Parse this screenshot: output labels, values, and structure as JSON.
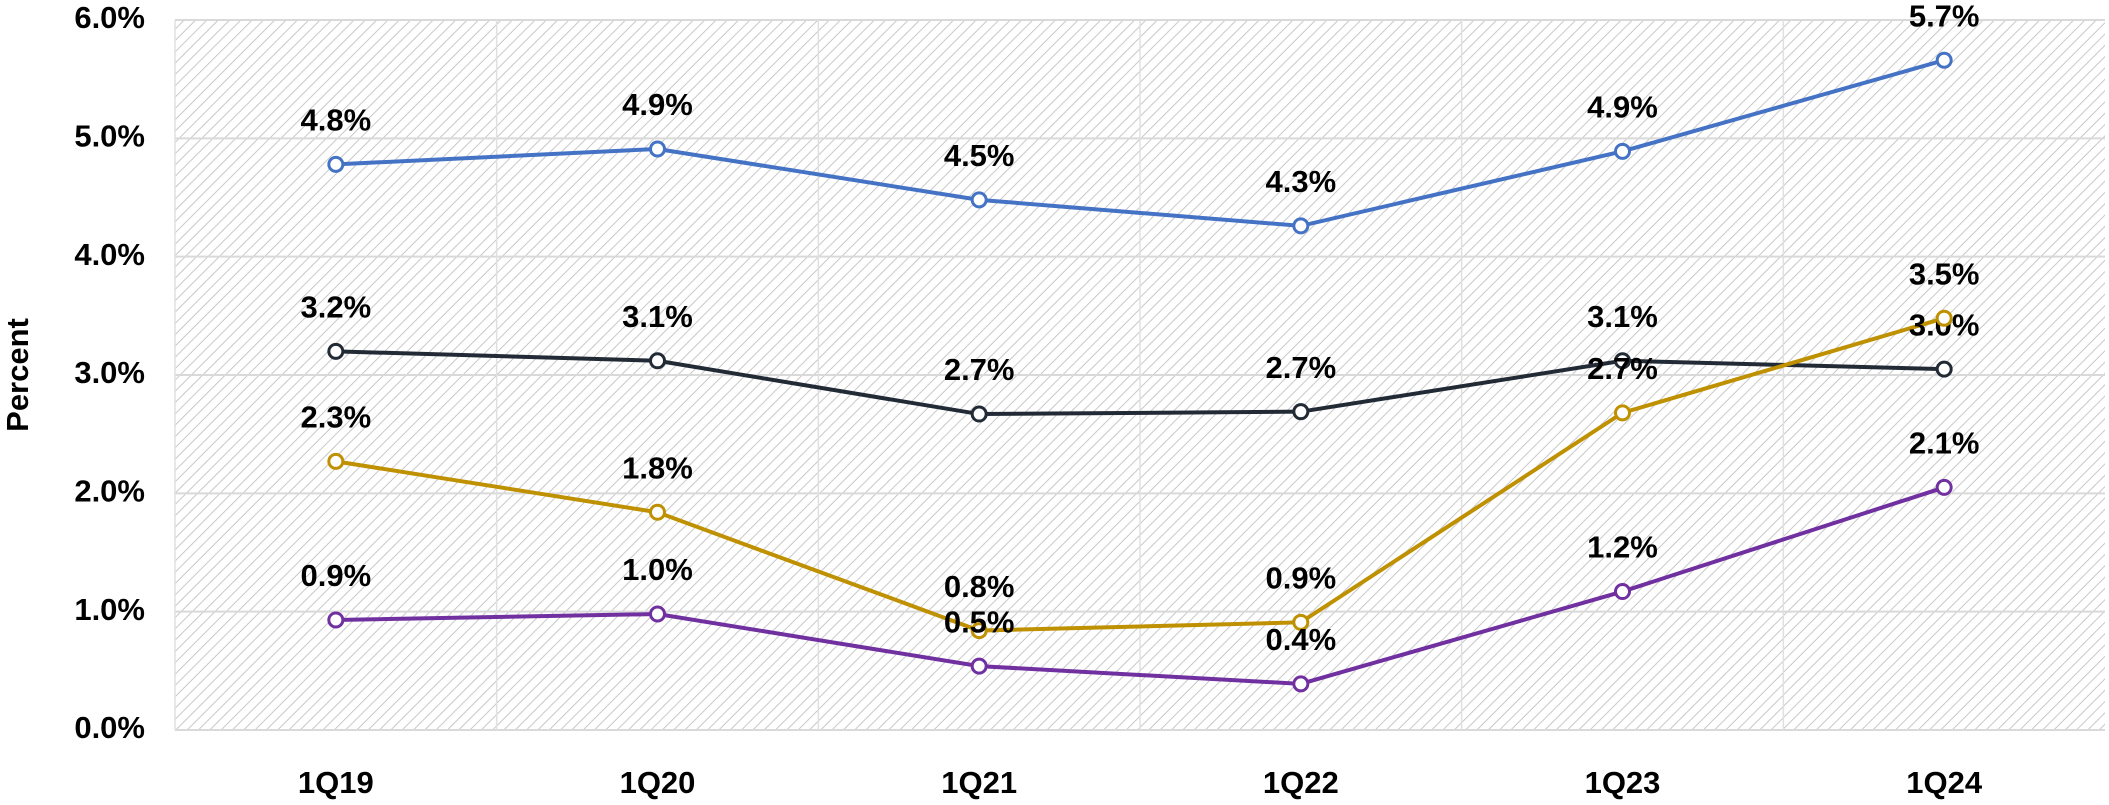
{
  "chart_data": {
    "type": "line",
    "ylabel": "Percent",
    "categories": [
      "1Q19",
      "1Q20",
      "1Q21",
      "1Q22",
      "1Q23",
      "1Q24"
    ],
    "series": [
      {
        "color": "#4472c4",
        "values": [
          4.78,
          4.91,
          4.48,
          4.26,
          4.89,
          5.66
        ],
        "value_labels": [
          "4.8%",
          "4.9%",
          "4.5%",
          "4.3%",
          "4.9%",
          "5.7%"
        ]
      },
      {
        "color": "#222a35",
        "values": [
          3.2,
          3.12,
          2.67,
          2.69,
          3.12,
          3.05
        ],
        "value_labels": [
          "3.2%",
          "3.1%",
          "2.7%",
          "2.7%",
          "3.1%",
          "3.0%"
        ]
      },
      {
        "color": "#bf9000",
        "values": [
          2.27,
          1.84,
          0.84,
          0.91,
          2.68,
          3.48
        ],
        "value_labels": [
          "2.3%",
          "1.8%",
          "0.8%",
          "0.9%",
          "2.7%",
          "3.5%"
        ]
      },
      {
        "color": "#7030a0",
        "values": [
          0.93,
          0.98,
          0.54,
          0.39,
          1.17,
          2.05
        ],
        "value_labels": [
          "0.9%",
          "1.0%",
          "0.5%",
          "0.4%",
          "1.2%",
          "2.1%"
        ]
      }
    ],
    "ylim": [
      0,
      6
    ],
    "yticks": [
      {
        "value": 0,
        "label": "0.0%"
      },
      {
        "value": 1,
        "label": "1.0%"
      },
      {
        "value": 2,
        "label": "2.0%"
      },
      {
        "value": 3,
        "label": "3.0%"
      },
      {
        "value": 4,
        "label": "4.0%"
      },
      {
        "value": 5,
        "label": "5.0%"
      },
      {
        "value": 6,
        "label": "6.0%"
      }
    ],
    "grid": true
  }
}
